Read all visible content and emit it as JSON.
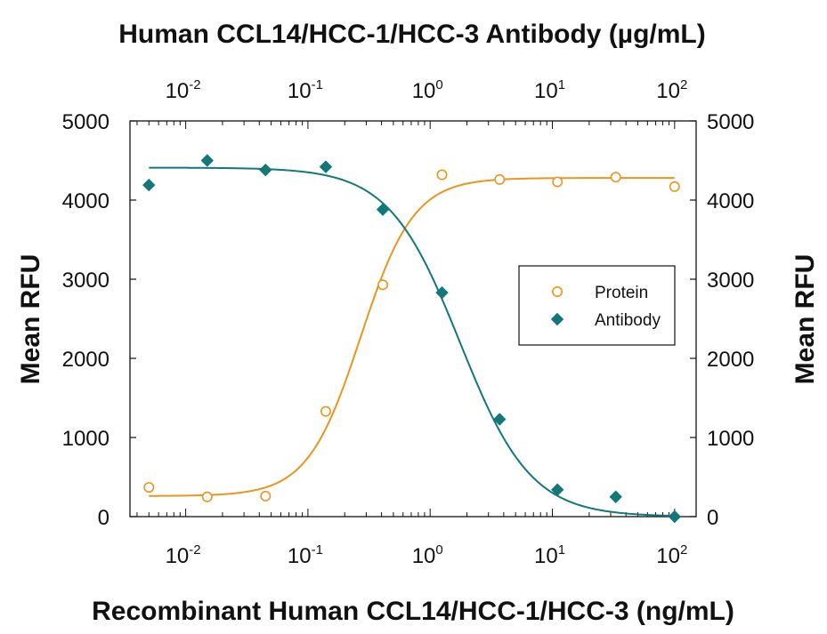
{
  "chart_data": {
    "type": "scatter",
    "title": "Human CCL14/HCC-1/HCC-3 Antibody (µg/mL)",
    "xlabel": "Recombinant Human CCL14/HCC-1/HCC-3 (ng/mL)",
    "ylabel_left": "Mean RFU",
    "ylabel_right": "Mean RFU",
    "x_scale": "log",
    "xlim": [
      0.0035,
      150
    ],
    "ylim": [
      0,
      5000
    ],
    "y_ticks": [
      0,
      1000,
      2000,
      3000,
      4000,
      5000
    ],
    "x_ticks": [
      {
        "value": 0.01,
        "base": "10",
        "exp": "-2"
      },
      {
        "value": 0.1,
        "base": "10",
        "exp": "-1"
      },
      {
        "value": 1,
        "base": "10",
        "exp": "0"
      },
      {
        "value": 10,
        "base": "10",
        "exp": "1"
      },
      {
        "value": 100,
        "base": "10",
        "exp": "2"
      }
    ],
    "grid": false,
    "legend_position": "middle-right",
    "series": [
      {
        "name": "Protein",
        "marker": "open-circle",
        "color": "#E8961E",
        "points": [
          {
            "x": 0.005,
            "y": 370
          },
          {
            "x": 0.015,
            "y": 250
          },
          {
            "x": 0.045,
            "y": 260
          },
          {
            "x": 0.14,
            "y": 1330
          },
          {
            "x": 0.41,
            "y": 2930
          },
          {
            "x": 1.25,
            "y": 4320
          },
          {
            "x": 3.7,
            "y": 4260
          },
          {
            "x": 11,
            "y": 4230
          },
          {
            "x": 33,
            "y": 4290
          },
          {
            "x": 100,
            "y": 4170
          }
        ],
        "fit": {
          "bottom": 260,
          "top": 4280,
          "ec50": 0.27,
          "hill": 2.0
        }
      },
      {
        "name": "Antibody",
        "marker": "filled-diamond",
        "color": "#12787A",
        "points": [
          {
            "x": 0.005,
            "y": 4190
          },
          {
            "x": 0.015,
            "y": 4500
          },
          {
            "x": 0.045,
            "y": 4380
          },
          {
            "x": 0.14,
            "y": 4420
          },
          {
            "x": 0.41,
            "y": 3880
          },
          {
            "x": 1.25,
            "y": 2830
          },
          {
            "x": 3.7,
            "y": 1230
          },
          {
            "x": 11,
            "y": 340
          },
          {
            "x": 33,
            "y": 250
          },
          {
            "x": 100,
            "y": 0
          }
        ],
        "fit": {
          "bottom": 0,
          "top": 4410,
          "ec50": 1.75,
          "hill": -1.5
        }
      }
    ]
  }
}
